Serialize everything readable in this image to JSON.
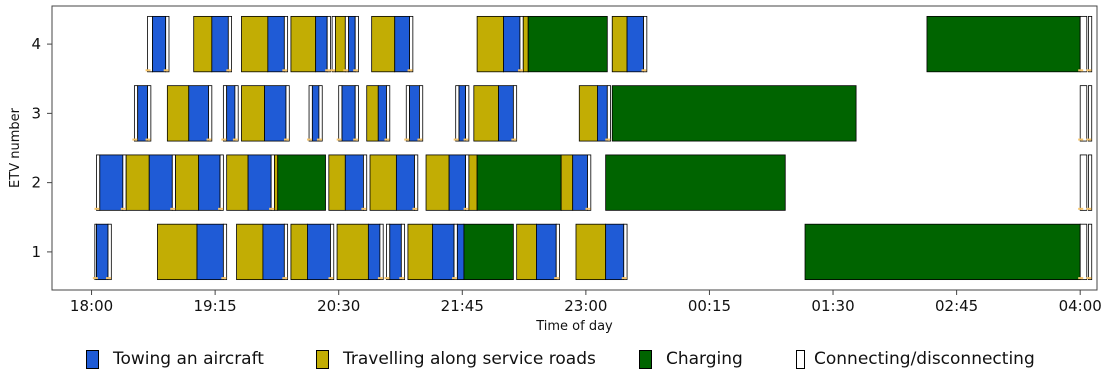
{
  "chart_data": {
    "type": "gantt",
    "title": "",
    "xlabel": "Time of day",
    "ylabel": "ETV number",
    "x_ticks": [
      "18:00",
      "19:15",
      "20:30",
      "21:45",
      "23:00",
      "00:15",
      "01:30",
      "02:45",
      "04:00"
    ],
    "y_ticks": [
      "1",
      "2",
      "3",
      "4"
    ],
    "categories": {
      "towing": {
        "label": "Towing an aircraft",
        "color": "#1f5bd6"
      },
      "travel": {
        "label": "Travelling along service roads",
        "color": "#c2ad04"
      },
      "charging": {
        "label": "Charging",
        "color": "#006400"
      },
      "connect": {
        "label": "Connecting/disconnecting",
        "color": "#ffffff"
      }
    },
    "series": [
      {
        "etv": "1",
        "segments": [
          [
            "connect",
            "18:02",
            "18:03"
          ],
          [
            "towing",
            "18:03",
            "18:10"
          ],
          [
            "connect",
            "18:10",
            "18:12"
          ],
          [
            "travel",
            "18:40",
            "19:04"
          ],
          [
            "towing",
            "19:04",
            "19:20"
          ],
          [
            "connect",
            "19:20",
            "19:22"
          ],
          [
            "travel",
            "19:28",
            "19:44"
          ],
          [
            "towing",
            "19:44",
            "19:57"
          ],
          [
            "connect",
            "19:57",
            "19:59"
          ],
          [
            "travel",
            "20:01",
            "20:11"
          ],
          [
            "towing",
            "20:11",
            "20:25"
          ],
          [
            "connect",
            "20:25",
            "20:27"
          ],
          [
            "travel",
            "20:29",
            "20:48"
          ],
          [
            "towing",
            "20:48",
            "20:55"
          ],
          [
            "connect",
            "20:55",
            "20:57"
          ],
          [
            "connect",
            "20:59",
            "21:01"
          ],
          [
            "towing",
            "21:01",
            "21:08"
          ],
          [
            "connect",
            "21:08",
            "21:10"
          ],
          [
            "travel",
            "21:12",
            "21:27"
          ],
          [
            "towing",
            "21:27",
            "21:40"
          ],
          [
            "connect",
            "21:40",
            "21:42"
          ],
          [
            "towing",
            "21:42",
            "21:46"
          ],
          [
            "charging",
            "21:46",
            "22:16"
          ],
          [
            "travel",
            "22:18",
            "22:30"
          ],
          [
            "towing",
            "22:30",
            "22:42"
          ],
          [
            "connect",
            "22:42",
            "22:44"
          ],
          [
            "travel",
            "22:54",
            "23:12"
          ],
          [
            "towing",
            "23:12",
            "23:23"
          ],
          [
            "connect",
            "23:23",
            "23:25"
          ],
          [
            "charging",
            "01:13",
            "04:00"
          ],
          [
            "connect",
            "04:00",
            "04:04"
          ],
          [
            "connect",
            "04:05",
            "04:07"
          ]
        ]
      },
      {
        "etv": "2",
        "segments": [
          [
            "connect",
            "18:03",
            "18:05"
          ],
          [
            "towing",
            "18:05",
            "18:19"
          ],
          [
            "connect",
            "18:19",
            "18:21"
          ],
          [
            "travel",
            "18:21",
            "18:35"
          ],
          [
            "towing",
            "18:35",
            "18:49"
          ],
          [
            "connect",
            "18:49",
            "18:51"
          ],
          [
            "travel",
            "18:51",
            "19:05"
          ],
          [
            "towing",
            "19:05",
            "19:18"
          ],
          [
            "connect",
            "19:18",
            "19:20"
          ],
          [
            "travel",
            "19:22",
            "19:35"
          ],
          [
            "towing",
            "19:35",
            "19:49"
          ],
          [
            "connect",
            "19:49",
            "19:51"
          ],
          [
            "travel",
            "19:51",
            "19:53"
          ],
          [
            "charging",
            "19:53",
            "20:22"
          ],
          [
            "travel",
            "20:24",
            "20:34"
          ],
          [
            "towing",
            "20:34",
            "20:45"
          ],
          [
            "connect",
            "20:45",
            "20:47"
          ],
          [
            "travel",
            "20:49",
            "21:05"
          ],
          [
            "towing",
            "21:05",
            "21:16"
          ],
          [
            "connect",
            "21:16",
            "21:18"
          ],
          [
            "travel",
            "21:23",
            "21:37"
          ],
          [
            "towing",
            "21:37",
            "21:47"
          ],
          [
            "connect",
            "21:47",
            "21:49"
          ],
          [
            "travel",
            "21:49",
            "21:54"
          ],
          [
            "charging",
            "21:54",
            "22:45"
          ],
          [
            "travel",
            "22:45",
            "22:52"
          ],
          [
            "towing",
            "22:52",
            "23:01"
          ],
          [
            "connect",
            "23:01",
            "23:03"
          ],
          [
            "charging",
            "23:12",
            "01:01"
          ],
          [
            "connect",
            "04:00",
            "04:04"
          ],
          [
            "connect",
            "04:05",
            "04:07"
          ]
        ]
      },
      {
        "etv": "3",
        "segments": [
          [
            "connect",
            "18:26",
            "18:28"
          ],
          [
            "towing",
            "18:28",
            "18:34"
          ],
          [
            "connect",
            "18:34",
            "18:36"
          ],
          [
            "travel",
            "18:46",
            "18:59"
          ],
          [
            "towing",
            "18:59",
            "19:11"
          ],
          [
            "connect",
            "19:11",
            "19:13"
          ],
          [
            "connect",
            "19:20",
            "19:22"
          ],
          [
            "towing",
            "19:22",
            "19:27"
          ],
          [
            "connect",
            "19:27",
            "19:29"
          ],
          [
            "travel",
            "19:31",
            "19:45"
          ],
          [
            "towing",
            "19:45",
            "19:58"
          ],
          [
            "connect",
            "19:58",
            "20:00"
          ],
          [
            "connect",
            "20:12",
            "20:14"
          ],
          [
            "towing",
            "20:14",
            "20:18"
          ],
          [
            "connect",
            "20:18",
            "20:20"
          ],
          [
            "connect",
            "20:30",
            "20:32"
          ],
          [
            "towing",
            "20:32",
            "20:40"
          ],
          [
            "connect",
            "20:40",
            "20:42"
          ],
          [
            "travel",
            "20:47",
            "20:54"
          ],
          [
            "towing",
            "20:54",
            "20:59"
          ],
          [
            "connect",
            "20:59",
            "21:01"
          ],
          [
            "connect",
            "21:11",
            "21:13"
          ],
          [
            "towing",
            "21:13",
            "21:19"
          ],
          [
            "connect",
            "21:19",
            "21:21"
          ],
          [
            "connect",
            "21:41",
            "21:43"
          ],
          [
            "towing",
            "21:43",
            "21:47"
          ],
          [
            "connect",
            "21:47",
            "21:49"
          ],
          [
            "travel",
            "21:52",
            "22:07"
          ],
          [
            "towing",
            "22:07",
            "22:16"
          ],
          [
            "connect",
            "22:16",
            "22:18"
          ],
          [
            "travel",
            "22:56",
            "23:07"
          ],
          [
            "towing",
            "23:07",
            "23:13"
          ],
          [
            "connect",
            "23:13",
            "23:15"
          ],
          [
            "charging",
            "23:16",
            "01:44"
          ],
          [
            "connect",
            "04:00",
            "04:04"
          ],
          [
            "connect",
            "04:05",
            "04:07"
          ]
        ]
      },
      {
        "etv": "4",
        "segments": [
          [
            "connect",
            "18:34",
            "18:37"
          ],
          [
            "towing",
            "18:37",
            "18:45"
          ],
          [
            "connect",
            "18:45",
            "18:47"
          ],
          [
            "travel",
            "19:02",
            "19:13"
          ],
          [
            "towing",
            "19:13",
            "19:23"
          ],
          [
            "connect",
            "19:23",
            "19:25"
          ],
          [
            "travel",
            "19:31",
            "19:47"
          ],
          [
            "towing",
            "19:47",
            "19:57"
          ],
          [
            "connect",
            "19:57",
            "19:59"
          ],
          [
            "travel",
            "20:01",
            "20:16"
          ],
          [
            "towing",
            "20:16",
            "20:23"
          ],
          [
            "connect",
            "20:23",
            "20:25"
          ],
          [
            "connect",
            "20:26",
            "20:28"
          ],
          [
            "travel",
            "20:28",
            "20:34"
          ],
          [
            "connect",
            "20:34",
            "20:36"
          ],
          [
            "towing",
            "20:36",
            "20:40"
          ],
          [
            "connect",
            "20:40",
            "20:42"
          ],
          [
            "travel",
            "20:50",
            "21:04"
          ],
          [
            "towing",
            "21:04",
            "21:13"
          ],
          [
            "connect",
            "21:13",
            "21:15"
          ],
          [
            "travel",
            "21:54",
            "22:10"
          ],
          [
            "towing",
            "22:10",
            "22:20"
          ],
          [
            "connect",
            "22:20",
            "22:22"
          ],
          [
            "travel",
            "22:22",
            "22:25"
          ],
          [
            "charging",
            "22:25",
            "23:13"
          ],
          [
            "travel",
            "23:16",
            "23:25"
          ],
          [
            "towing",
            "23:25",
            "23:35"
          ],
          [
            "connect",
            "23:35",
            "23:37"
          ],
          [
            "charging",
            "02:27",
            "04:00"
          ],
          [
            "connect",
            "04:00",
            "04:04"
          ],
          [
            "connect",
            "04:05",
            "04:07"
          ]
        ]
      }
    ],
    "xlim_hours": [
      17.6,
      28.17
    ],
    "ylim": [
      0.45,
      4.55
    ],
    "grid": false,
    "legend_position": "bottom"
  }
}
